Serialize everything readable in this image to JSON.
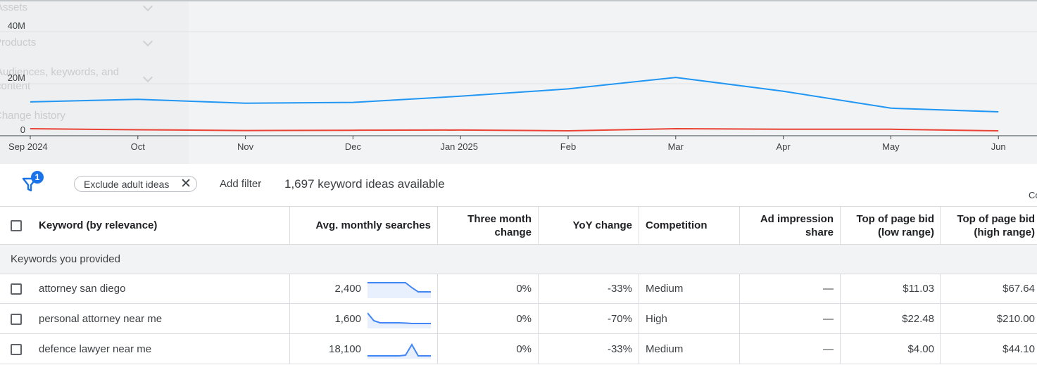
{
  "chart": {
    "ghost_menu": [
      "Assets",
      "Products",
      "Audiences, keywords, and content",
      "Change history"
    ],
    "y_ticks": [
      "40M",
      "20M",
      "0"
    ],
    "x_ticks": [
      "Sep 2024",
      "Oct",
      "Nov",
      "Dec",
      "Jan 2025",
      "Feb",
      "Mar",
      "Apr",
      "May",
      "Jun"
    ],
    "colors": {
      "series_1": "#2196f3",
      "series_2": "#ea4335"
    }
  },
  "chart_data": {
    "type": "line",
    "x": [
      "Sep 2024",
      "Oct",
      "Nov",
      "Dec",
      "Jan 2025",
      "Feb",
      "Mar",
      "Apr",
      "May",
      "Jun"
    ],
    "ylim": [
      0,
      40000000
    ],
    "series": [
      {
        "values": [
          13000000,
          14000000,
          12500000,
          12800000,
          15200000,
          18000000,
          22400000,
          17100000,
          10600000,
          9200000
        ]
      },
      {
        "values": [
          2700000,
          2300000,
          2000000,
          2100000,
          2200000,
          1900000,
          2700000,
          2500000,
          2500000,
          1900000
        ]
      }
    ]
  },
  "filter_bar": {
    "filter_badge": "1",
    "chip_label": "Exclude adult ideas",
    "chip_close": "✕",
    "add_filter": "Add filter",
    "ideas_available": "1,697 keyword ideas available",
    "peek_text": "Co"
  },
  "table": {
    "headers": {
      "keyword": "Keyword (by relevance)",
      "avg_searches": "Avg. monthly searches",
      "three_month_line1": "Three month",
      "three_month_line2": "change",
      "yoy": "YoY change",
      "competition": "Competition",
      "ad_impression_line1": "Ad impression",
      "ad_impression_line2": "share",
      "bid_low_line1": "Top of page bid",
      "bid_low_line2": "(low range)",
      "bid_high_line1": "Top of page bid",
      "bid_high_line2": "(high range)"
    },
    "group_label": "Keywords you provided",
    "rows": [
      {
        "keyword": "attorney san diego",
        "avg_searches": "2,400",
        "three_month": "0%",
        "yoy": "-33%",
        "competition": "Medium",
        "ad_share": "—",
        "bid_low": "$11.03",
        "bid_high": "$67.64",
        "trend": [
          1,
          1,
          1,
          1,
          1,
          1,
          1,
          0.65,
          0.35,
          0.35,
          0.35
        ]
      },
      {
        "keyword": "personal attorney near me",
        "avg_searches": "1,600",
        "three_month": "0%",
        "yoy": "-70%",
        "competition": "High",
        "ad_share": "—",
        "bid_low": "$22.48",
        "bid_high": "$210.00",
        "trend": [
          1,
          0.45,
          0.3,
          0.3,
          0.3,
          0.3,
          0.28,
          0.25,
          0.25,
          0.25,
          0.25
        ]
      },
      {
        "keyword": "defence lawyer near me",
        "avg_searches": "18,100",
        "three_month": "0%",
        "yoy": "-33%",
        "competition": "Medium",
        "ad_share": "—",
        "bid_low": "$4.00",
        "bid_high": "$44.10",
        "trend": [
          0.1,
          0.1,
          0.1,
          0.1,
          0.1,
          0.1,
          0.15,
          0.9,
          0.1,
          0.1,
          0.1
        ]
      }
    ]
  }
}
